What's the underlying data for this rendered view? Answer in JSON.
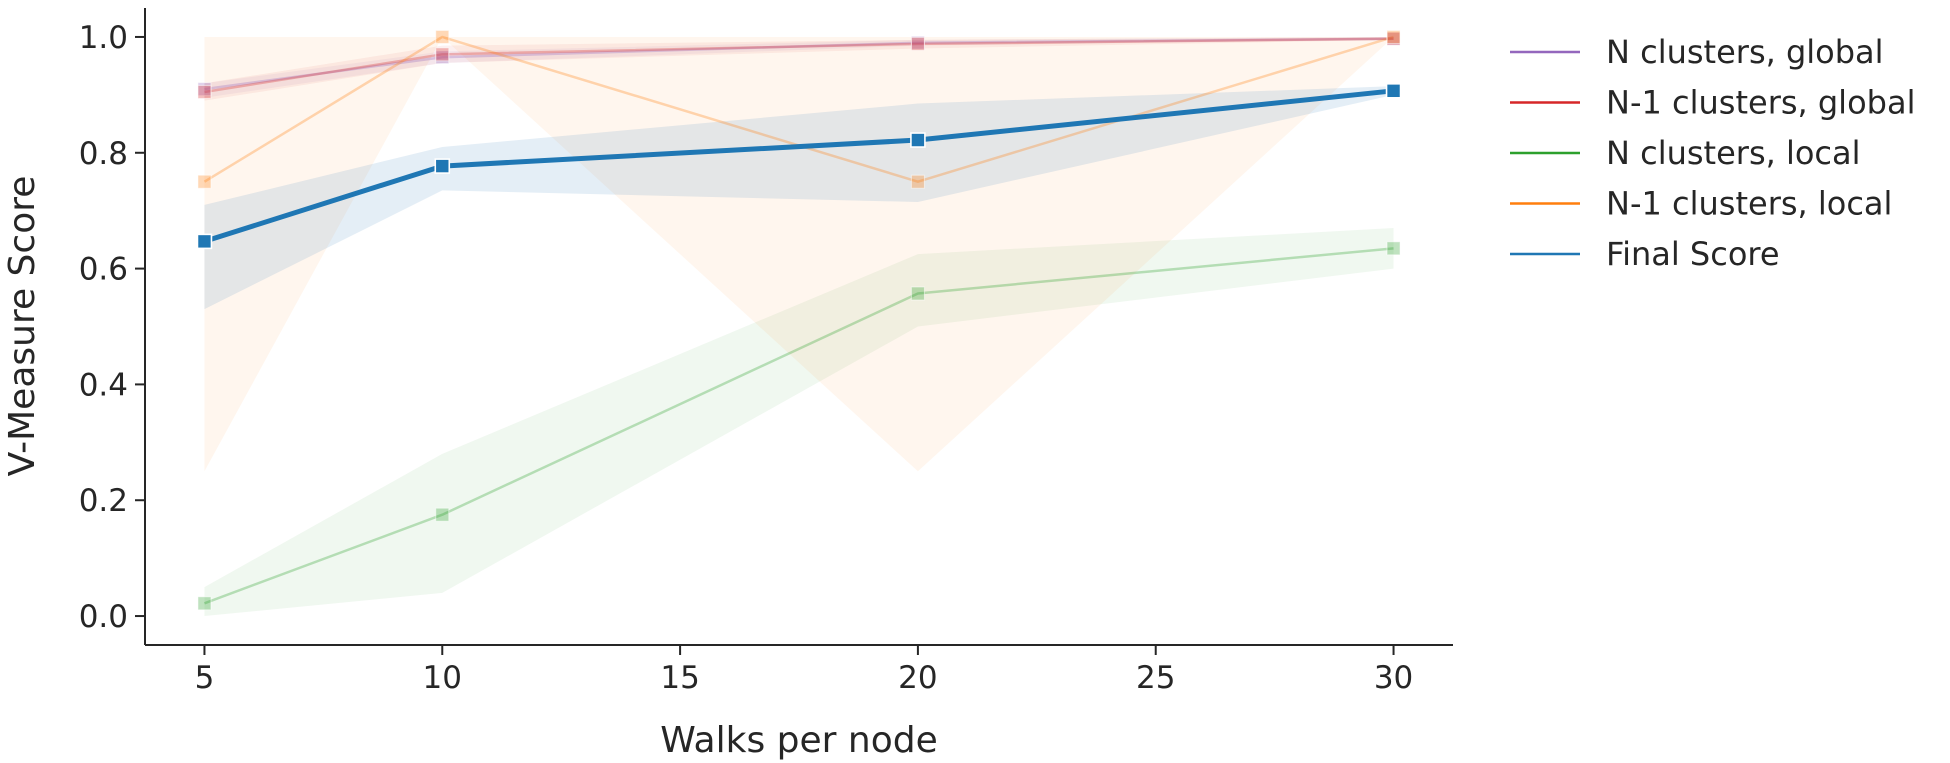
{
  "chart_data": {
    "type": "line",
    "xlabel": "Walks per node",
    "ylabel": "V-Measure Score",
    "x_ticks": [
      5,
      10,
      15,
      20,
      25,
      30
    ],
    "y_ticks": [
      "0.0",
      "0.2",
      "0.4",
      "0.6",
      "0.8",
      "1.0"
    ],
    "xlim": [
      3.75,
      31.25
    ],
    "ylim": [
      -0.05,
      1.05
    ],
    "grid": false,
    "legend_position": "outside-right",
    "series": [
      {
        "name": "N clusters, global",
        "color": "#9467bd",
        "emphasis": "faded",
        "x": [
          5,
          10,
          20,
          30
        ],
        "y": [
          0.91,
          0.965,
          0.99,
          0.997
        ],
        "band_low": [
          0.895,
          0.955,
          0.985,
          0.995
        ],
        "band_high": [
          0.92,
          0.975,
          0.995,
          1.0
        ]
      },
      {
        "name": "N-1 clusters, global",
        "color": "#d62728",
        "emphasis": "faded",
        "x": [
          5,
          10,
          20,
          30
        ],
        "y": [
          0.905,
          0.97,
          0.988,
          0.997
        ],
        "band_low": [
          0.89,
          0.955,
          0.98,
          0.995
        ],
        "band_high": [
          0.92,
          0.985,
          0.995,
          1.0
        ]
      },
      {
        "name": "N clusters, local",
        "color": "#2ca02c",
        "emphasis": "faded",
        "x": [
          5,
          10,
          20,
          30
        ],
        "y": [
          0.022,
          0.175,
          0.557,
          0.635
        ],
        "band_low": [
          0.0,
          0.04,
          0.5,
          0.6
        ],
        "band_high": [
          0.05,
          0.28,
          0.625,
          0.67
        ]
      },
      {
        "name": "N-1 clusters, local",
        "color": "#ff7f0e",
        "emphasis": "faded",
        "x": [
          5,
          10,
          20,
          30
        ],
        "y": [
          0.75,
          1.0,
          0.75,
          1.0
        ],
        "band_low": [
          0.25,
          1.0,
          0.25,
          1.0
        ],
        "band_high": [
          1.0,
          1.0,
          1.0,
          1.0
        ]
      },
      {
        "name": "Final Score",
        "color": "#1f77b4",
        "emphasis": "bold",
        "x": [
          5,
          10,
          20,
          30
        ],
        "y": [
          0.647,
          0.777,
          0.822,
          0.907
        ],
        "band_low": [
          0.53,
          0.735,
          0.715,
          0.9
        ],
        "band_high": [
          0.71,
          0.81,
          0.885,
          0.915
        ]
      }
    ]
  }
}
